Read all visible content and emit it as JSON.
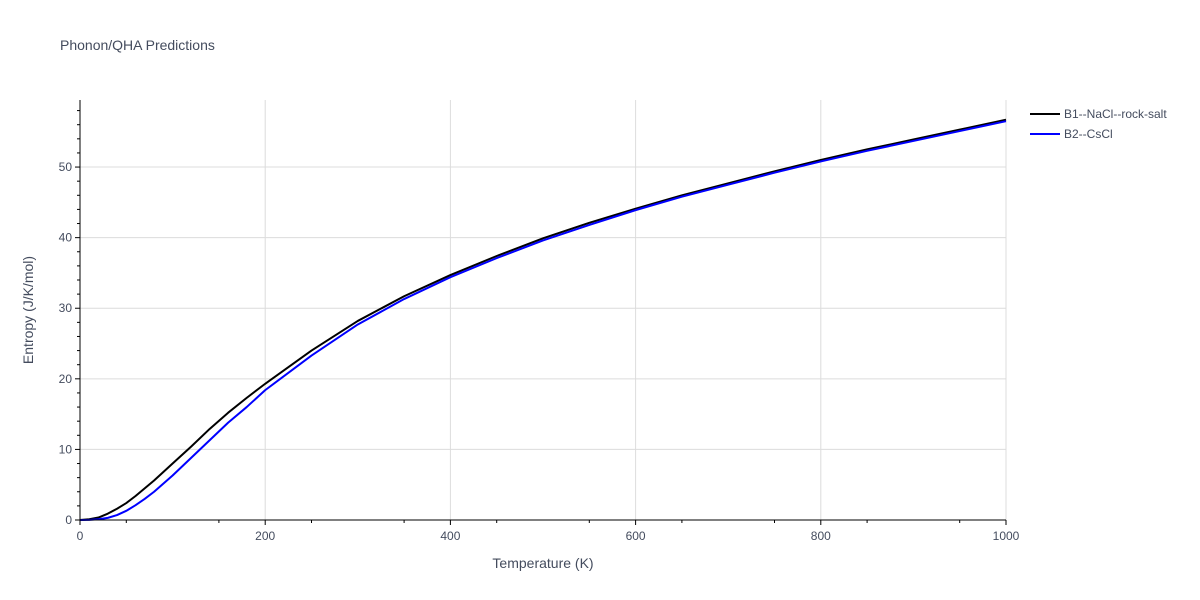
{
  "chart_data": {
    "type": "line",
    "title": "Phonon/QHA Predictions",
    "xlabel": "Temperature (K)",
    "ylabel": "Entropy (J/K/mol)",
    "xlim": [
      0,
      1000
    ],
    "ylim": [
      0,
      59.5
    ],
    "xticks": [
      0,
      200,
      400,
      600,
      800,
      1000
    ],
    "xtick_labels": [
      "0",
      "200",
      "400",
      "600",
      "800",
      "1000"
    ],
    "yticks": [
      0,
      10,
      20,
      30,
      40,
      50
    ],
    "ytick_labels": [
      "0",
      "10",
      "20",
      "30",
      "40",
      "50"
    ],
    "grid": true,
    "legend_position": "top-right",
    "series": [
      {
        "name": "B1--NaCl--rock-salt",
        "color": "#000000",
        "x": [
          0,
          10,
          20,
          30,
          40,
          50,
          60,
          70,
          80,
          100,
          120,
          140,
          160,
          180,
          200,
          250,
          300,
          350,
          400,
          450,
          500,
          550,
          600,
          650,
          700,
          750,
          800,
          850,
          900,
          950,
          1000
        ],
        "y": [
          0,
          0.1,
          0.35,
          0.9,
          1.6,
          2.4,
          3.4,
          4.5,
          5.6,
          8.0,
          10.4,
          12.9,
          15.2,
          17.3,
          19.3,
          24.0,
          28.2,
          31.7,
          34.7,
          37.4,
          39.9,
          42.1,
          44.1,
          46.0,
          47.7,
          49.4,
          51.0,
          52.5,
          53.9,
          55.3,
          56.7
        ]
      },
      {
        "name": "B2--CsCl",
        "color": "#0000ff",
        "x": [
          0,
          10,
          20,
          30,
          40,
          50,
          60,
          70,
          80,
          100,
          120,
          140,
          160,
          180,
          200,
          250,
          300,
          350,
          400,
          450,
          500,
          550,
          600,
          650,
          700,
          750,
          800,
          850,
          900,
          950,
          1000
        ],
        "y": [
          0,
          0.02,
          0.1,
          0.3,
          0.7,
          1.3,
          2.1,
          3.0,
          4.0,
          6.3,
          8.8,
          11.3,
          13.8,
          16.0,
          18.4,
          23.3,
          27.7,
          31.3,
          34.4,
          37.1,
          39.6,
          41.8,
          43.9,
          45.8,
          47.5,
          49.2,
          50.8,
          52.3,
          53.7,
          55.1,
          56.5
        ]
      }
    ]
  }
}
